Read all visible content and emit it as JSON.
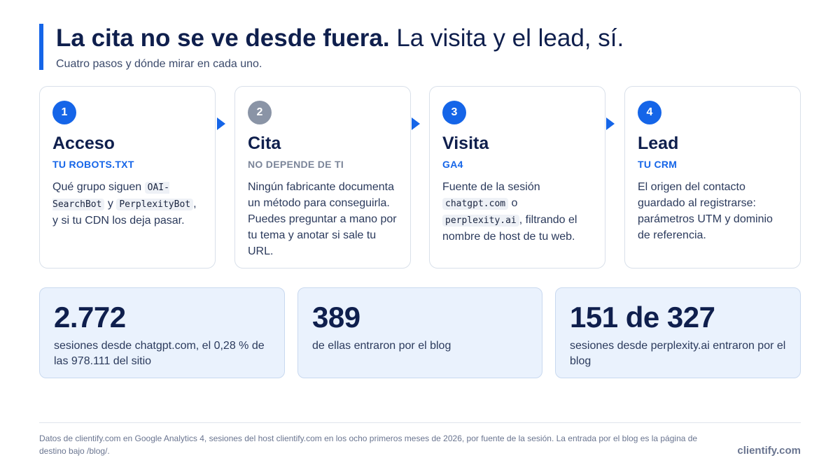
{
  "header": {
    "title_strong": "La cita no se ve desde fuera.",
    "title_light": "La visita y el lead, sí.",
    "subtitle": "Cuatro pasos y dónde mirar en cada uno."
  },
  "steps": [
    {
      "number": "1",
      "title": "Acceso",
      "label": "TU ROBOTS.TXT",
      "body_1": "Qué grupo siguen",
      "code_1": "OAI-SearchBot",
      "body_2": " y",
      "code_2": "PerplexityBot",
      "body_3": ", y si tu CDN los deja pasar."
    },
    {
      "number": "2",
      "title": "Cita",
      "label": "NO DEPENDE DE TI",
      "body": "Ningún fabricante documenta un método para conseguirla. Puedes preguntar a mano por tu tema y anotar si sale tu URL."
    },
    {
      "number": "3",
      "title": "Visita",
      "label": "GA4",
      "body_1": "Fuente de la sesión",
      "code_1": "chatgpt.com",
      "body_2": " o",
      "code_2": "perplexity.ai",
      "body_3": ", filtrando el nombre de host de tu web."
    },
    {
      "number": "4",
      "title": "Lead",
      "label": "TU CRM",
      "body": "El origen del contacto guardado al registrarse: parámetros UTM y dominio de referencia."
    }
  ],
  "stats": [
    {
      "value": "2.772",
      "text": "sesiones desde chatgpt.com, el 0,28 % de las 978.111 del sitio"
    },
    {
      "value": "389",
      "text": "de ellas entraron por el blog"
    },
    {
      "value": "151 de 327",
      "text": "sesiones desde perplexity.ai entraron por el blog"
    }
  ],
  "footer": {
    "note": "Datos de clientify.com en Google Analytics 4, sesiones del host clientify.com en los ocho primeros meses de 2026, por fuente de la sesión. La entrada por el blog es la página de destino bajo /blog/.",
    "brand": "clientify.com"
  },
  "colors": {
    "accent": "#1565e8",
    "navy": "#0f1f4d",
    "muted_grey": "#8a94a6",
    "stat_background": "#eaf2fd"
  }
}
